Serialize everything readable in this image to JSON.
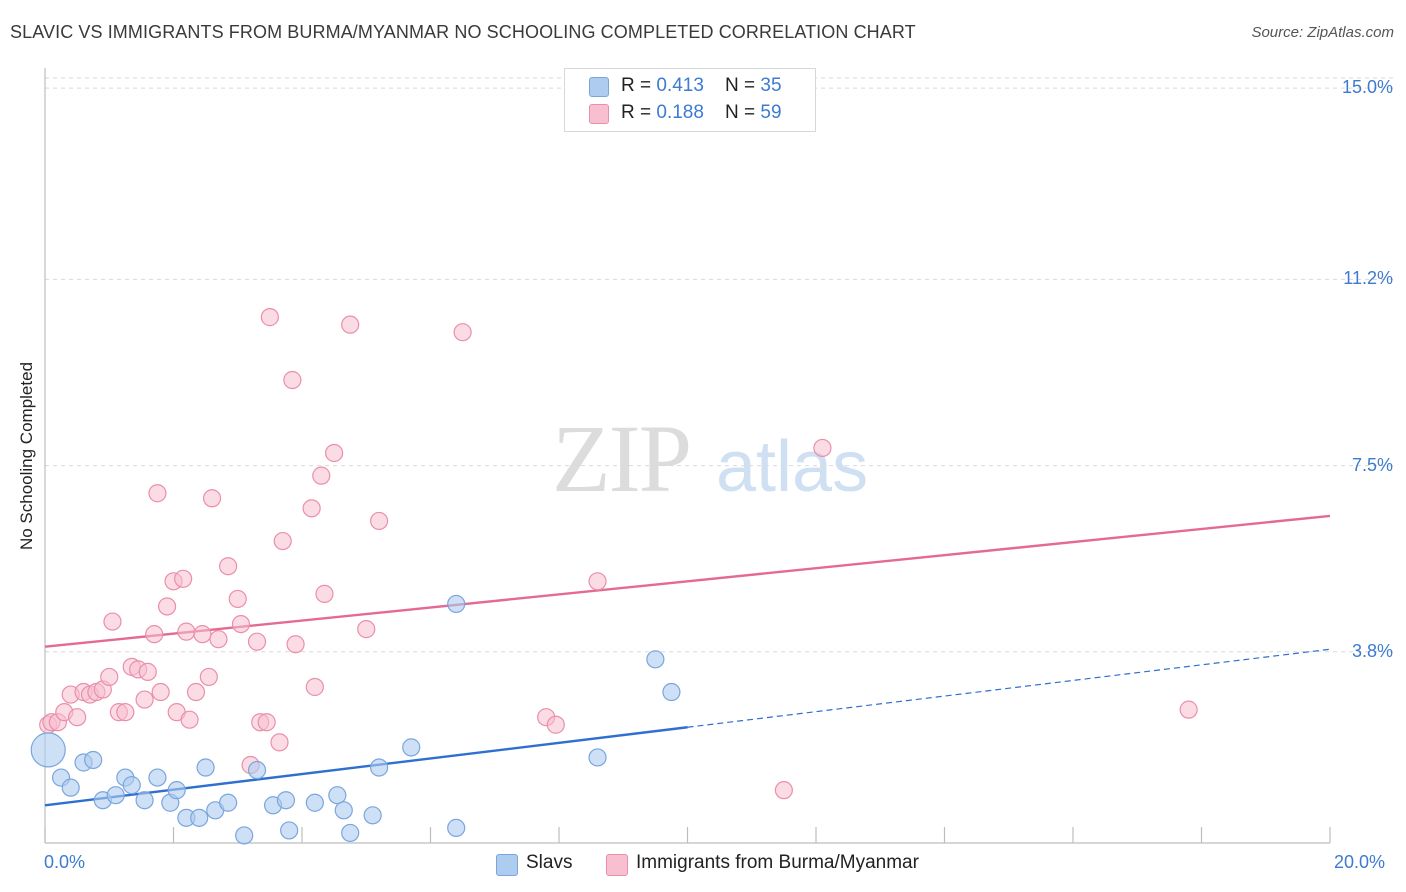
{
  "title": "SLAVIC VS IMMIGRANTS FROM BURMA/MYANMAR NO SCHOOLING COMPLETED CORRELATION CHART",
  "source": "Source: ZipAtlas.com",
  "watermark": {
    "zip": "ZIP",
    "atlas": "atlas"
  },
  "legend": {
    "rows": [
      {
        "r_label": "R = ",
        "r_value": "0.413",
        "n_label": "N = ",
        "n_value": "35"
      },
      {
        "r_label": "R = ",
        "r_value": "0.188",
        "n_label": "N = ",
        "n_value": "59"
      }
    ]
  },
  "bottom_legend": [
    "Slavs",
    "Immigrants from Burma/Myanmar"
  ],
  "x_tick_labels": {
    "left": "0.0%",
    "right": "20.0%"
  },
  "y_tick_labels": [
    "15.0%",
    "11.2%",
    "7.5%",
    "3.8%"
  ],
  "colors": {
    "blue_fill": "#aecbf0",
    "blue_stroke": "#7aa6dd",
    "blue_line": "#2f6fd0",
    "pink_fill": "#f7bfd0",
    "pink_stroke": "#ea8fab",
    "pink_line": "#e46a93",
    "tick_text": "#3d7bd0",
    "grid": "#d9d9d9"
  },
  "chart_data": {
    "type": "scatter",
    "title": "SLAVIC VS IMMIGRANTS FROM BURMA/MYANMAR NO SCHOOLING COMPLETED CORRELATION CHART",
    "xlabel": "",
    "ylabel": "No Schooling Completed",
    "xlim": [
      0,
      20
    ],
    "ylim": [
      0,
      15.4
    ],
    "y_ticks": [
      3.8,
      7.5,
      11.2,
      15.0
    ],
    "grid": true,
    "legend_position": "top-center",
    "series": [
      {
        "name": "Slavs",
        "r": 0.413,
        "n": 35,
        "trend": {
          "x0": 0,
          "y0": 0.75,
          "x1": 20,
          "y1": 3.85,
          "solid_until_x": 10
        },
        "points": [
          {
            "x": 0.05,
            "y": 1.85,
            "big": true
          },
          {
            "x": 0.25,
            "y": 1.3
          },
          {
            "x": 0.4,
            "y": 1.1
          },
          {
            "x": 0.6,
            "y": 1.6
          },
          {
            "x": 0.75,
            "y": 1.65
          },
          {
            "x": 0.9,
            "y": 0.85
          },
          {
            "x": 1.1,
            "y": 0.95
          },
          {
            "x": 1.25,
            "y": 1.3
          },
          {
            "x": 1.35,
            "y": 1.15
          },
          {
            "x": 1.55,
            "y": 0.85
          },
          {
            "x": 1.75,
            "y": 1.3
          },
          {
            "x": 1.95,
            "y": 0.8
          },
          {
            "x": 2.05,
            "y": 1.05
          },
          {
            "x": 2.2,
            "y": 0.5
          },
          {
            "x": 2.4,
            "y": 0.5
          },
          {
            "x": 2.5,
            "y": 1.5
          },
          {
            "x": 2.65,
            "y": 0.65
          },
          {
            "x": 2.85,
            "y": 0.8
          },
          {
            "x": 3.1,
            "y": 0.15
          },
          {
            "x": 3.3,
            "y": 1.45
          },
          {
            "x": 3.55,
            "y": 0.75
          },
          {
            "x": 3.75,
            "y": 0.85
          },
          {
            "x": 3.8,
            "y": 0.25
          },
          {
            "x": 4.2,
            "y": 0.8
          },
          {
            "x": 4.55,
            "y": 0.95
          },
          {
            "x": 4.65,
            "y": 0.65
          },
          {
            "x": 4.75,
            "y": 0.2
          },
          {
            "x": 5.1,
            "y": 0.55
          },
          {
            "x": 5.2,
            "y": 1.5
          },
          {
            "x": 5.7,
            "y": 1.9
          },
          {
            "x": 6.4,
            "y": 0.3
          },
          {
            "x": 6.4,
            "y": 4.75
          },
          {
            "x": 8.6,
            "y": 1.7
          },
          {
            "x": 9.5,
            "y": 3.65
          },
          {
            "x": 9.75,
            "y": 3.0
          }
        ]
      },
      {
        "name": "Immigrants from Burma/Myanmar",
        "r": 0.188,
        "n": 59,
        "trend": {
          "x0": 0,
          "y0": 3.9,
          "x1": 20,
          "y1": 6.5
        },
        "points": [
          {
            "x": 0.05,
            "y": 2.35
          },
          {
            "x": 0.1,
            "y": 2.4
          },
          {
            "x": 0.2,
            "y": 2.4
          },
          {
            "x": 0.3,
            "y": 2.6
          },
          {
            "x": 0.4,
            "y": 2.95
          },
          {
            "x": 0.5,
            "y": 2.5
          },
          {
            "x": 0.6,
            "y": 3.0
          },
          {
            "x": 0.7,
            "y": 2.95
          },
          {
            "x": 0.8,
            "y": 3.0
          },
          {
            "x": 0.9,
            "y": 3.05
          },
          {
            "x": 1.0,
            "y": 3.3
          },
          {
            "x": 1.05,
            "y": 4.4
          },
          {
            "x": 1.15,
            "y": 2.6
          },
          {
            "x": 1.25,
            "y": 2.6
          },
          {
            "x": 1.35,
            "y": 3.5
          },
          {
            "x": 1.45,
            "y": 3.45
          },
          {
            "x": 1.55,
            "y": 2.85
          },
          {
            "x": 1.6,
            "y": 3.4
          },
          {
            "x": 1.7,
            "y": 4.15
          },
          {
            "x": 1.75,
            "y": 6.95
          },
          {
            "x": 1.8,
            "y": 3.0
          },
          {
            "x": 1.9,
            "y": 4.7
          },
          {
            "x": 2.0,
            "y": 5.2
          },
          {
            "x": 2.05,
            "y": 2.6
          },
          {
            "x": 2.15,
            "y": 5.25
          },
          {
            "x": 2.2,
            "y": 4.2
          },
          {
            "x": 2.25,
            "y": 2.45
          },
          {
            "x": 2.35,
            "y": 3.0
          },
          {
            "x": 2.45,
            "y": 4.15
          },
          {
            "x": 2.55,
            "y": 3.3
          },
          {
            "x": 2.6,
            "y": 6.85
          },
          {
            "x": 2.7,
            "y": 4.05
          },
          {
            "x": 2.85,
            "y": 5.5
          },
          {
            "x": 3.0,
            "y": 4.85
          },
          {
            "x": 3.05,
            "y": 4.35
          },
          {
            "x": 3.2,
            "y": 1.55
          },
          {
            "x": 3.3,
            "y": 4.0
          },
          {
            "x": 3.35,
            "y": 2.4
          },
          {
            "x": 3.45,
            "y": 2.4
          },
          {
            "x": 3.5,
            "y": 10.45
          },
          {
            "x": 3.65,
            "y": 2.0
          },
          {
            "x": 3.7,
            "y": 6.0
          },
          {
            "x": 3.85,
            "y": 9.2
          },
          {
            "x": 3.9,
            "y": 3.95
          },
          {
            "x": 4.15,
            "y": 6.65
          },
          {
            "x": 4.2,
            "y": 3.1
          },
          {
            "x": 4.3,
            "y": 7.3
          },
          {
            "x": 4.35,
            "y": 4.95
          },
          {
            "x": 4.5,
            "y": 7.75
          },
          {
            "x": 4.75,
            "y": 10.3
          },
          {
            "x": 5.0,
            "y": 4.25
          },
          {
            "x": 5.2,
            "y": 6.4
          },
          {
            "x": 6.5,
            "y": 10.15
          },
          {
            "x": 7.8,
            "y": 2.5
          },
          {
            "x": 7.95,
            "y": 2.35
          },
          {
            "x": 8.6,
            "y": 5.2
          },
          {
            "x": 11.5,
            "y": 1.05
          },
          {
            "x": 12.1,
            "y": 7.85
          },
          {
            "x": 17.8,
            "y": 2.65
          }
        ]
      }
    ]
  }
}
